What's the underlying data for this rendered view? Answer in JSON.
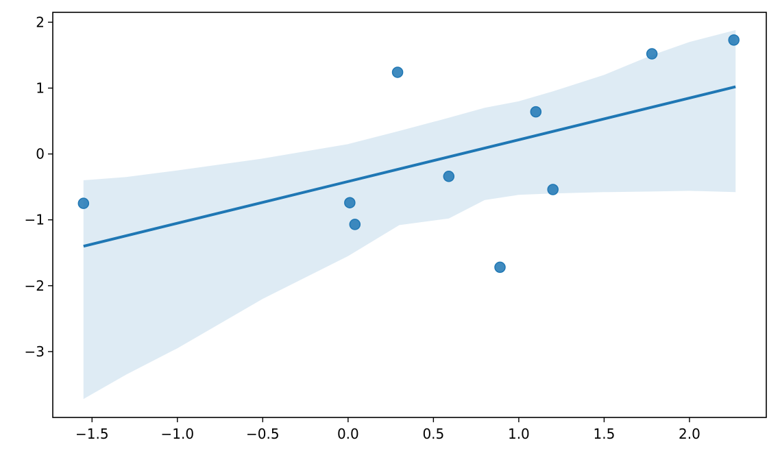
{
  "chart_data": {
    "type": "scatter",
    "title": "",
    "xlabel": "",
    "ylabel": "",
    "xlim": [
      -1.73,
      2.45
    ],
    "ylim": [
      -4.0,
      2.15
    ],
    "x_ticks": [
      -1.5,
      -1.0,
      -0.5,
      0.0,
      0.5,
      1.0,
      1.5,
      2.0
    ],
    "x_tick_labels": [
      "−1.5",
      "−1.0",
      "−0.5",
      "0.0",
      "0.5",
      "1.0",
      "1.5",
      "2.0"
    ],
    "y_ticks": [
      -3,
      -2,
      -1,
      0,
      1,
      2
    ],
    "y_tick_labels": [
      "−3",
      "−2",
      "−1",
      "0",
      "1",
      "2"
    ],
    "grid": false,
    "series": [
      {
        "kind": "points",
        "color": "#1f77b4",
        "x": [
          -1.55,
          0.01,
          0.04,
          0.29,
          0.59,
          0.89,
          1.1,
          1.2,
          1.78,
          2.26
        ],
        "y": [
          -0.75,
          -0.74,
          -1.07,
          1.24,
          -0.34,
          -1.72,
          0.64,
          -0.54,
          1.52,
          1.73
        ]
      },
      {
        "kind": "regression-line",
        "color": "#1f77b4",
        "x": [
          -1.55,
          2.27
        ],
        "y": [
          -1.4,
          1.02
        ]
      },
      {
        "kind": "confidence-band",
        "color": "#1f77b4",
        "x": [
          -1.55,
          -1.3,
          -1.0,
          -0.5,
          0.0,
          0.3,
          0.59,
          0.8,
          1.0,
          1.2,
          1.5,
          1.78,
          2.0,
          2.27
        ],
        "upper": [
          -0.4,
          -0.35,
          -0.25,
          -0.07,
          0.15,
          0.35,
          0.55,
          0.7,
          0.8,
          0.95,
          1.2,
          1.5,
          1.7,
          1.88
        ],
        "lower": [
          -3.72,
          -3.35,
          -2.95,
          -2.2,
          -1.55,
          -1.08,
          -0.98,
          -0.7,
          -0.62,
          -0.6,
          -0.58,
          -0.57,
          -0.56,
          -0.58
        ]
      }
    ]
  }
}
